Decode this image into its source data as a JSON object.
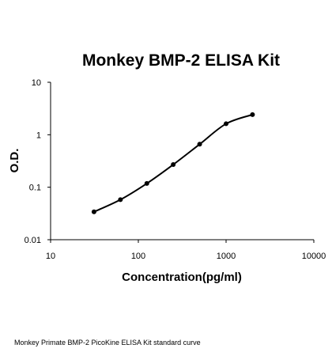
{
  "chart_data": {
    "type": "line",
    "title": "Monkey BMP-2 ELISA Kit",
    "xlabel": "Concentration(pg/ml)",
    "ylabel": "O.D.",
    "x_scale": "log",
    "y_scale": "log",
    "xlim": [
      10,
      10000
    ],
    "ylim": [
      0.01,
      10
    ],
    "x_ticks": [
      "10",
      "100",
      "1000",
      "10000"
    ],
    "y_ticks": [
      "0.01",
      "0.1",
      "1",
      "10"
    ],
    "grid": false,
    "legend": "none",
    "series": [
      {
        "x": [
          31.25,
          62.5,
          125,
          250,
          500,
          1000,
          2000
        ],
        "y": [
          0.034,
          0.058,
          0.118,
          0.27,
          0.66,
          1.62,
          2.42
        ]
      }
    ]
  },
  "caption": "Monkey Primate BMP-2 PicoKine ELISA Kit standard curve"
}
